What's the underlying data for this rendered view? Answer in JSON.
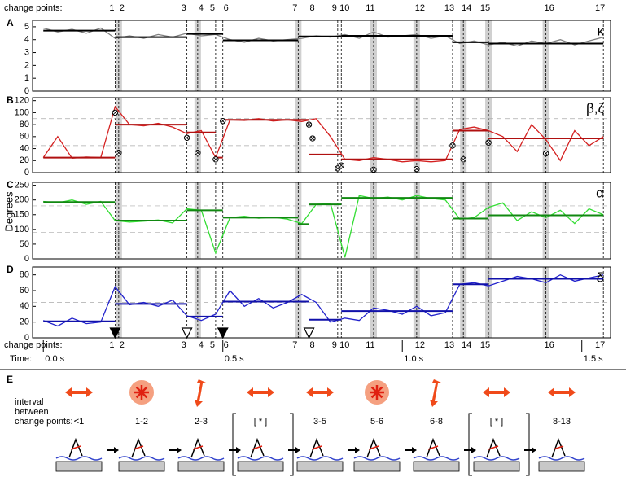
{
  "y_label": "Degrees",
  "change_points": {
    "label": "change points:",
    "times": [
      0.2,
      0.21,
      0.4,
      0.43,
      0.48,
      0.5,
      0.71,
      0.74,
      0.82,
      0.83,
      0.92,
      1.04,
      1.14,
      1.17,
      1.24,
      1.4,
      1.56
    ],
    "labels": [
      "1",
      "2",
      "3",
      "4",
      "5",
      "6",
      "7",
      "8",
      "9",
      "10",
      "11",
      "12",
      "13",
      "14",
      "15",
      "16",
      "17"
    ],
    "shaded": [
      false,
      true,
      false,
      true,
      false,
      false,
      true,
      false,
      false,
      false,
      true,
      true,
      false,
      true,
      true,
      true,
      false
    ]
  },
  "time_axis": {
    "label": "Time:",
    "xlim": [
      -0.03,
      1.58
    ],
    "ticks": [
      {
        "value": 0,
        "label": "0.0 s"
      },
      {
        "value": 0.5,
        "label": "0.5 s"
      },
      {
        "value": 1,
        "label": "1.0 s"
      },
      {
        "value": 1.5,
        "label": "1.5 s"
      }
    ]
  },
  "chart_data": [
    {
      "type": "line",
      "title": "A",
      "xlim": [
        -0.03,
        1.58
      ],
      "ylim": [
        0,
        5.5
      ],
      "yticks": [
        0,
        1,
        2,
        3,
        4,
        5
      ],
      "ref_lines": [],
      "x": [
        0,
        0.04,
        0.08,
        0.12,
        0.16,
        0.2,
        0.24,
        0.28,
        0.32,
        0.36,
        0.4,
        0.44,
        0.48,
        0.52,
        0.56,
        0.6,
        0.64,
        0.68,
        0.72,
        0.76,
        0.8,
        0.84,
        0.88,
        0.92,
        0.96,
        1,
        1.04,
        1.08,
        1.12,
        1.16,
        1.2,
        1.24,
        1.28,
        1.32,
        1.36,
        1.4,
        1.44,
        1.48,
        1.52,
        1.56
      ],
      "series": [
        {
          "name": "κ",
          "color": "#808080",
          "values": [
            4.9,
            4.6,
            4.8,
            4.5,
            4.9,
            4.1,
            4.3,
            4.1,
            4.4,
            4.2,
            4.5,
            4.3,
            4.4,
            4.0,
            3.8,
            4.1,
            3.9,
            4.0,
            4.1,
            4.3,
            4.2,
            4.4,
            4.1,
            4.6,
            4.2,
            4.3,
            4.4,
            4.1,
            4.3,
            3.7,
            3.9,
            3.6,
            3.8,
            3.5,
            3.9,
            3.7,
            4.0,
            3.6,
            3.9,
            4.2
          ]
        }
      ],
      "fit": {
        "color": "#000000",
        "edges": [
          0,
          0.2,
          0.4,
          0.5,
          0.71,
          0.83,
          1.14,
          1.24,
          1.56
        ],
        "values": [
          4.7,
          4.2,
          4.45,
          3.95,
          4.25,
          4.3,
          3.8,
          3.7
        ]
      }
    },
    {
      "type": "line",
      "title": "B",
      "xlim": [
        -0.03,
        1.58
      ],
      "ylim": [
        0,
        125
      ],
      "yticks": [
        0,
        20,
        40,
        60,
        80,
        100,
        120
      ],
      "ref_lines": [
        45,
        90
      ],
      "x": [
        0,
        0.04,
        0.08,
        0.12,
        0.16,
        0.2,
        0.24,
        0.28,
        0.32,
        0.36,
        0.4,
        0.44,
        0.48,
        0.52,
        0.56,
        0.6,
        0.64,
        0.68,
        0.72,
        0.76,
        0.8,
        0.84,
        0.88,
        0.92,
        0.96,
        1,
        1.04,
        1.08,
        1.12,
        1.16,
        1.2,
        1.24,
        1.28,
        1.32,
        1.36,
        1.4,
        1.44,
        1.48,
        1.52,
        1.56
      ],
      "series": [
        {
          "name": "β,ζ",
          "color": "#d42020",
          "values": [
            25,
            60,
            24,
            26,
            25,
            110,
            80,
            78,
            82,
            76,
            65,
            70,
            25,
            88,
            87,
            90,
            86,
            88,
            85,
            90,
            60,
            22,
            20,
            25,
            22,
            18,
            20,
            18,
            20,
            72,
            76,
            70,
            60,
            35,
            80,
            55,
            20,
            70,
            45,
            60
          ]
        }
      ],
      "fit": {
        "color": "#b01010",
        "edges": [
          0,
          0.2,
          0.4,
          0.48,
          0.5,
          0.74,
          0.83,
          1.14,
          1.24,
          1.56
        ],
        "values": [
          25,
          80,
          67,
          25,
          88,
          30,
          22,
          70,
          57
        ]
      },
      "markers": {
        "x": [
          0.2,
          0.21,
          0.4,
          0.43,
          0.48,
          0.5,
          0.74,
          0.75,
          0.82,
          0.83,
          0.92,
          1.04,
          1.14,
          1.17,
          1.24,
          1.4
        ],
        "values": [
          100,
          33,
          58,
          33,
          22,
          86,
          80,
          57,
          7,
          12,
          5,
          6,
          45,
          22,
          50,
          32
        ]
      }
    },
    {
      "type": "line",
      "title": "C",
      "xlim": [
        -0.03,
        1.58
      ],
      "ylim": [
        0,
        260
      ],
      "yticks": [
        0,
        50,
        100,
        150,
        200,
        250
      ],
      "ref_lines": [
        90,
        180
      ],
      "x": [
        0,
        0.04,
        0.08,
        0.12,
        0.16,
        0.2,
        0.24,
        0.28,
        0.32,
        0.36,
        0.4,
        0.44,
        0.48,
        0.52,
        0.56,
        0.6,
        0.64,
        0.68,
        0.72,
        0.76,
        0.8,
        0.84,
        0.88,
        0.92,
        0.96,
        1,
        1.04,
        1.08,
        1.12,
        1.16,
        1.2,
        1.24,
        1.28,
        1.32,
        1.36,
        1.4,
        1.44,
        1.48,
        1.52,
        1.56
      ],
      "series": [
        {
          "name": "α",
          "color": "#33dd33",
          "values": [
            195,
            190,
            200,
            185,
            195,
            130,
            125,
            128,
            132,
            122,
            170,
            165,
            20,
            140,
            145,
            138,
            142,
            135,
            120,
            185,
            188,
            5,
            215,
            205,
            210,
            200,
            215,
            205,
            200,
            135,
            140,
            175,
            190,
            130,
            160,
            140,
            165,
            120,
            170,
            150
          ]
        }
      ],
      "fit": {
        "color": "#118811",
        "edges": [
          0,
          0.2,
          0.4,
          0.5,
          0.71,
          0.74,
          0.83,
          1.14,
          1.24,
          1.56
        ],
        "values": [
          193,
          130,
          165,
          140,
          118,
          185,
          207,
          137,
          148
        ]
      }
    },
    {
      "type": "line",
      "title": "D",
      "xlim": [
        -0.03,
        1.58
      ],
      "ylim": [
        0,
        90
      ],
      "yticks": [
        0,
        20,
        40,
        60,
        80
      ],
      "ref_lines": [
        45,
        90
      ],
      "x": [
        0,
        0.04,
        0.08,
        0.12,
        0.16,
        0.2,
        0.24,
        0.28,
        0.32,
        0.36,
        0.4,
        0.44,
        0.48,
        0.52,
        0.56,
        0.6,
        0.64,
        0.68,
        0.72,
        0.76,
        0.8,
        0.84,
        0.88,
        0.92,
        0.96,
        1,
        1.04,
        1.08,
        1.12,
        1.16,
        1.2,
        1.24,
        1.28,
        1.32,
        1.36,
        1.4,
        1.44,
        1.48,
        1.52,
        1.56
      ],
      "series": [
        {
          "name": "δ",
          "color": "#2222cc",
          "values": [
            22,
            15,
            25,
            18,
            20,
            65,
            42,
            45,
            40,
            48,
            28,
            22,
            30,
            60,
            40,
            50,
            38,
            45,
            55,
            45,
            20,
            25,
            22,
            38,
            35,
            30,
            40,
            28,
            32,
            68,
            70,
            66,
            72,
            78,
            75,
            70,
            80,
            72,
            76,
            80
          ]
        }
      ],
      "fit": {
        "color": "#1111aa",
        "edges": [
          0,
          0.2,
          0.4,
          0.5,
          0.74,
          0.83,
          1.14,
          1.24,
          1.56
        ],
        "values": [
          21,
          43,
          27,
          46,
          23,
          34,
          68,
          75
        ]
      },
      "triangles": {
        "x": [
          0.2,
          0.4,
          0.5,
          0.74
        ],
        "filled": [
          true,
          false,
          true,
          false
        ]
      }
    }
  ],
  "panel_e": {
    "title": "E",
    "label_lines": [
      "interval",
      "between",
      "change points:"
    ],
    "columns": [
      {
        "label": "<1",
        "icon": "horizontal"
      },
      {
        "label": "1-2",
        "icon": "sunburst"
      },
      {
        "label": "2-3",
        "icon": "vertical"
      },
      {
        "label": "[ * ]",
        "icon": "horizontal",
        "bracketed": true
      },
      {
        "label": "3-5",
        "icon": "horizontal"
      },
      {
        "label": "5-6",
        "icon": "sunburst"
      },
      {
        "label": "6-8",
        "icon": "vertical"
      },
      {
        "label": "[ * ]",
        "icon": "horizontal",
        "bracketed": true
      },
      {
        "label": "8-13",
        "icon": "horizontal"
      }
    ]
  }
}
